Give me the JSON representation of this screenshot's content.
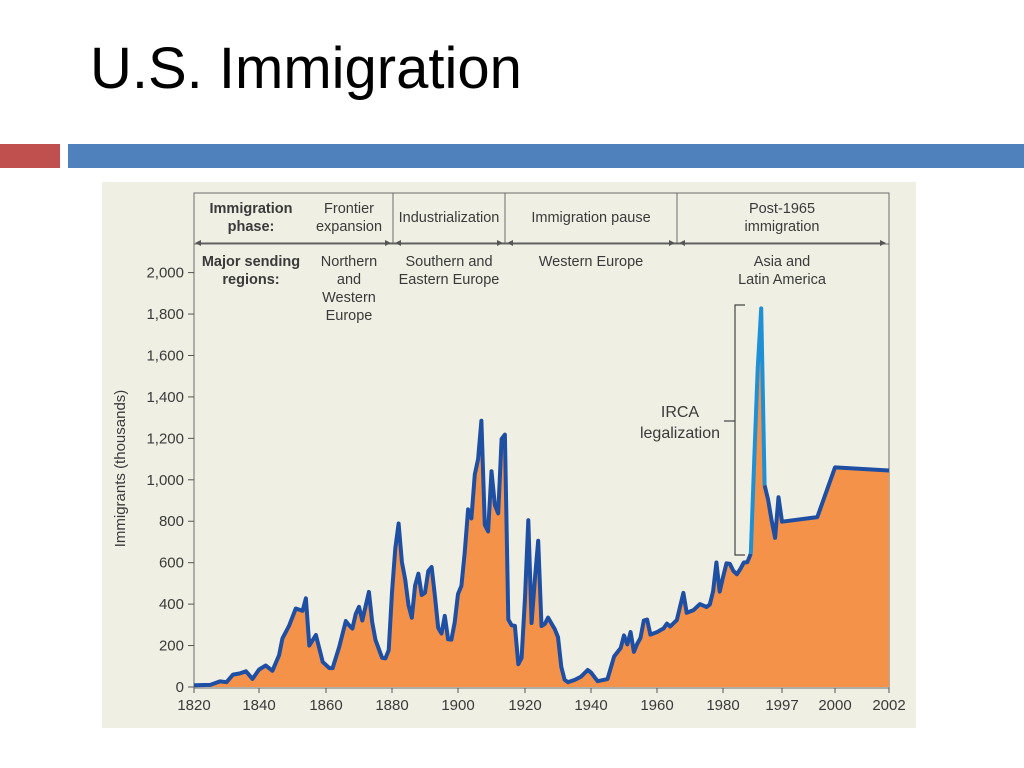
{
  "slide": {
    "title": "U.S. Immigration",
    "accent_red": "#c0504d",
    "accent_blue": "#4f81bd"
  },
  "colors": {
    "panel_bg": "#f0efe4",
    "area_fill": "#f5924a",
    "main_line": "#1f4fa3",
    "irca_line": "#1e90d6",
    "text": "#3a3a3a"
  },
  "header": {
    "phase_label": [
      "Immigration",
      "phase:"
    ],
    "regions_label": [
      "Major sending",
      "regions:"
    ],
    "phases": [
      {
        "name": [
          "Frontier",
          "expansion"
        ],
        "regions": [
          "Northern",
          "and",
          "Western",
          "Europe"
        ]
      },
      {
        "name": [
          "Industrialization"
        ],
        "regions": [
          "Southern and",
          "Eastern Europe"
        ]
      },
      {
        "name": [
          "Immigration pause"
        ],
        "regions": [
          "Western Europe"
        ]
      },
      {
        "name": [
          "Post-1965",
          "immigration"
        ],
        "regions": [
          "Asia and",
          "Latin America"
        ]
      }
    ]
  },
  "chart_data": {
    "type": "area",
    "ylabel": "Immigrants (thousands)",
    "xlabel": "",
    "ylim": [
      0,
      2000
    ],
    "yticks": [
      0,
      200,
      400,
      600,
      800,
      1000,
      1200,
      1400,
      1600,
      1800,
      2000
    ],
    "ytick_labels": [
      "0",
      "200",
      "400",
      "600",
      "800",
      "1,000",
      "1,200",
      "1,400",
      "1,600",
      "1,800",
      "2,000"
    ],
    "xticks": [
      1820,
      1840,
      1860,
      1880,
      1900,
      1920,
      1940,
      1960,
      1980,
      1997,
      2000,
      2002
    ],
    "annotation": [
      "IRCA",
      "legalization"
    ],
    "series": [
      {
        "values": [
          [
            1820,
            8
          ],
          [
            1825,
            10
          ],
          [
            1828,
            27
          ],
          [
            1830,
            23
          ],
          [
            1832,
            60
          ],
          [
            1834,
            65
          ],
          [
            1836,
            76
          ],
          [
            1838,
            39
          ],
          [
            1840,
            84
          ],
          [
            1842,
            104
          ],
          [
            1844,
            78
          ],
          [
            1846,
            154
          ],
          [
            1847,
            234
          ],
          [
            1849,
            297
          ],
          [
            1851,
            379
          ],
          [
            1853,
            368
          ],
          [
            1854,
            428
          ],
          [
            1855,
            200
          ],
          [
            1857,
            251
          ],
          [
            1859,
            121
          ],
          [
            1861,
            91
          ],
          [
            1862,
            91
          ],
          [
            1864,
            193
          ],
          [
            1866,
            318
          ],
          [
            1867,
            298
          ],
          [
            1868,
            282
          ],
          [
            1869,
            352
          ],
          [
            1870,
            387
          ],
          [
            1871,
            321
          ],
          [
            1873,
            459
          ],
          [
            1874,
            313
          ],
          [
            1875,
            227
          ],
          [
            1877,
            141
          ],
          [
            1878,
            138
          ],
          [
            1879,
            177
          ],
          [
            1880,
            457
          ],
          [
            1881,
            669
          ],
          [
            1882,
            789
          ],
          [
            1883,
            603
          ],
          [
            1884,
            519
          ],
          [
            1885,
            395
          ],
          [
            1886,
            334
          ],
          [
            1887,
            490
          ],
          [
            1888,
            547
          ],
          [
            1889,
            444
          ],
          [
            1890,
            455
          ],
          [
            1891,
            560
          ],
          [
            1892,
            579
          ],
          [
            1893,
            440
          ],
          [
            1894,
            285
          ],
          [
            1895,
            258
          ],
          [
            1896,
            343
          ],
          [
            1897,
            230
          ],
          [
            1898,
            229
          ],
          [
            1899,
            312
          ],
          [
            1900,
            449
          ],
          [
            1901,
            488
          ],
          [
            1902,
            648
          ],
          [
            1903,
            857
          ],
          [
            1904,
            813
          ],
          [
            1905,
            1026
          ],
          [
            1906,
            1100
          ],
          [
            1907,
            1285
          ],
          [
            1908,
            783
          ],
          [
            1909,
            751
          ],
          [
            1910,
            1041
          ],
          [
            1911,
            878
          ],
          [
            1912,
            838
          ],
          [
            1913,
            1197
          ],
          [
            1914,
            1218
          ],
          [
            1915,
            326
          ],
          [
            1916,
            298
          ],
          [
            1917,
            295
          ],
          [
            1918,
            110
          ],
          [
            1919,
            141
          ],
          [
            1920,
            430
          ],
          [
            1921,
            805
          ],
          [
            1922,
            309
          ],
          [
            1923,
            522
          ],
          [
            1924,
            706
          ],
          [
            1925,
            294
          ],
          [
            1926,
            304
          ],
          [
            1927,
            335
          ],
          [
            1928,
            307
          ],
          [
            1929,
            280
          ],
          [
            1930,
            241
          ],
          [
            1931,
            97
          ],
          [
            1932,
            35
          ],
          [
            1933,
            23
          ],
          [
            1935,
            34
          ],
          [
            1937,
            50
          ],
          [
            1939,
            82
          ],
          [
            1940,
            70
          ],
          [
            1942,
            28
          ],
          [
            1945,
            38
          ],
          [
            1947,
            147
          ],
          [
            1949,
            188
          ],
          [
            1950,
            249
          ],
          [
            1951,
            205
          ],
          [
            1952,
            265
          ],
          [
            1953,
            170
          ],
          [
            1954,
            208
          ],
          [
            1955,
            237
          ],
          [
            1956,
            321
          ],
          [
            1957,
            326
          ],
          [
            1958,
            253
          ],
          [
            1960,
            265
          ],
          [
            1962,
            283
          ],
          [
            1963,
            306
          ],
          [
            1964,
            292
          ],
          [
            1966,
            323
          ],
          [
            1968,
            454
          ],
          [
            1969,
            358
          ],
          [
            1971,
            370
          ],
          [
            1973,
            400
          ],
          [
            1975,
            386
          ],
          [
            1976,
            398
          ],
          [
            1977,
            462
          ],
          [
            1978,
            601
          ],
          [
            1979,
            460
          ],
          [
            1980,
            530
          ],
          [
            1981,
            597
          ],
          [
            1982,
            594
          ],
          [
            1983,
            560
          ],
          [
            1984,
            544
          ],
          [
            1985,
            570
          ],
          [
            1986,
            601
          ],
          [
            1987,
            602
          ],
          [
            1988,
            643
          ],
          [
            1989,
            1091
          ],
          [
            1990,
            1536
          ],
          [
            1991,
            1827
          ],
          [
            1992,
            974
          ],
          [
            1993,
            904
          ],
          [
            1994,
            804
          ],
          [
            1995,
            720
          ],
          [
            1996,
            916
          ],
          [
            1997,
            798
          ],
          [
            1999,
            820
          ],
          [
            2000,
            1060
          ],
          [
            2002,
            1045
          ]
        ]
      }
    ]
  }
}
